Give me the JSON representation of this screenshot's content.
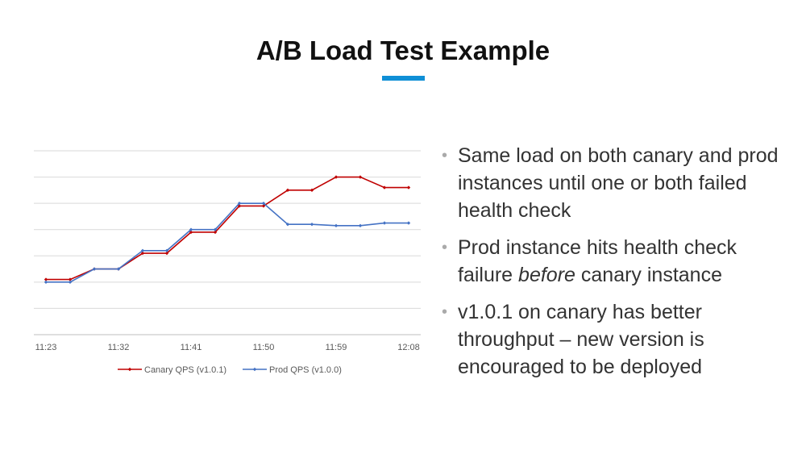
{
  "slide": {
    "title": "A/B Load Test Example",
    "accent_color": "#0f8fd6"
  },
  "bullets": [
    {
      "text": "Same load on both canary and prod instances until one or both failed health check"
    },
    {
      "before": "Prod instance hits health check failure ",
      "emphasis": "before",
      "after": " canary instance"
    },
    {
      "text": "v1.0.1 on canary has better throughput – new version is encouraged to be deployed"
    }
  ],
  "chart_data": {
    "type": "line",
    "title": "",
    "xlabel": "",
    "ylabel": "",
    "x": [
      "11:23",
      "11:26",
      "11:29",
      "11:32",
      "11:35",
      "11:38",
      "11:41",
      "11:44",
      "11:47",
      "11:50",
      "11:53",
      "11:56",
      "11:59",
      "12:02",
      "12:05",
      "12:08"
    ],
    "x_tick_labels": [
      "11:23",
      "11:32",
      "11:41",
      "11:50",
      "11:59",
      "12:08"
    ],
    "ylim": [
      0,
      7
    ],
    "y_gridlines": 7,
    "y_tick_labels_shown": false,
    "grid": true,
    "legend_position": "bottom",
    "series": [
      {
        "name": "Canary QPS (v1.0.1)",
        "color": "#c00000",
        "values": [
          2.1,
          2.1,
          2.5,
          2.5,
          3.1,
          3.1,
          3.9,
          3.9,
          4.9,
          4.9,
          5.5,
          5.5,
          6.0,
          6.0,
          5.6,
          5.6
        ]
      },
      {
        "name": "Prod QPS (v1.0.0)",
        "color": "#4472c4",
        "values": [
          2.0,
          2.0,
          2.5,
          2.5,
          3.2,
          3.2,
          4.0,
          4.0,
          5.0,
          5.0,
          4.2,
          4.2,
          4.15,
          4.15,
          4.25,
          4.25
        ]
      }
    ]
  }
}
